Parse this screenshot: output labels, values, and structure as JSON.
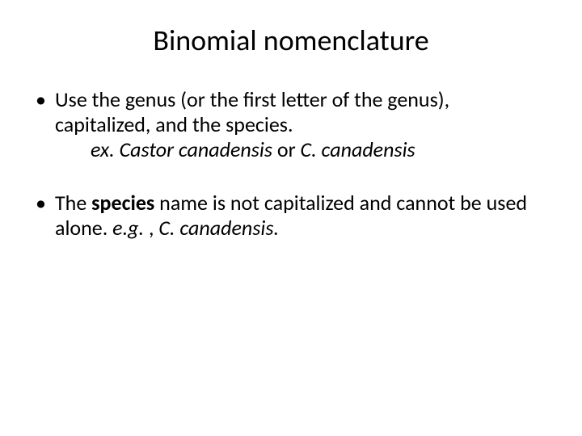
{
  "title": "Binomial nomenclature",
  "bullets": {
    "b1": {
      "line1": "Use the genus (or the first letter of the genus), capitalized,  and the species.",
      "ex_prefix": "ex. Castor canadensis",
      "ex_mid": "  or ",
      "ex_suffix": "C. canadensis"
    },
    "b2": {
      "pre": "The ",
      "bold": "species",
      "mid": " name is not capitalized and cannot be used alone. ",
      "eg": "e.g.",
      "comma": " , ",
      "tail": "C. canadensis."
    }
  }
}
